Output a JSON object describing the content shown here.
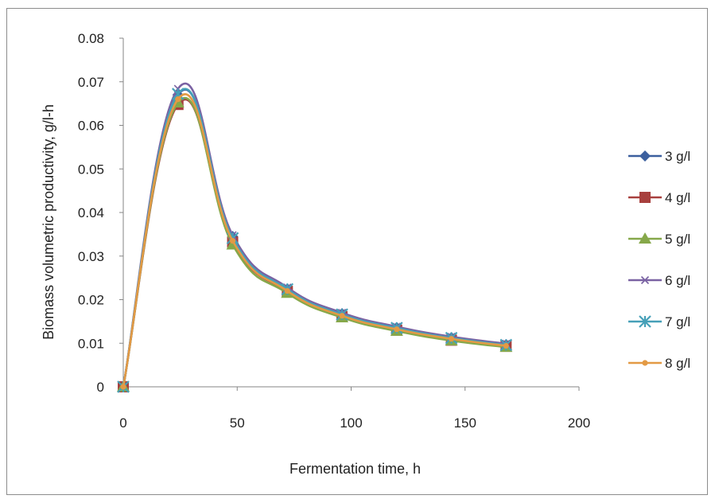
{
  "chart_data": {
    "type": "line",
    "xlabel": "Fermentation time, h",
    "ylabel": "Biomass volumetric productivity, g/l-h",
    "xlim": [
      0,
      200
    ],
    "ylim": [
      0,
      0.08
    ],
    "xticks": [
      "0",
      "50",
      "100",
      "150",
      "200"
    ],
    "yticks": [
      "0",
      "0.01",
      "0.02",
      "0.03",
      "0.04",
      "0.05",
      "0.06",
      "0.07",
      "0.08"
    ],
    "grid": false,
    "legend_position": "right",
    "x": [
      0,
      24,
      48,
      72,
      96,
      120,
      144,
      168
    ],
    "series": [
      {
        "name": "3 g/l",
        "color": "#3b5f9e",
        "marker": "diamond",
        "values": [
          0,
          0.067,
          0.0345,
          0.0225,
          0.0168,
          0.0136,
          0.0113,
          0.0097
        ]
      },
      {
        "name": "4 g/l",
        "color": "#a8403e",
        "marker": "square",
        "values": [
          0,
          0.0648,
          0.0332,
          0.0219,
          0.0161,
          0.013,
          0.0107,
          0.0093
        ]
      },
      {
        "name": "5 g/l",
        "color": "#86a84a",
        "marker": "triangle",
        "values": [
          0,
          0.0652,
          0.0326,
          0.0215,
          0.0159,
          0.0128,
          0.0106,
          0.0091
        ]
      },
      {
        "name": "6 g/l",
        "color": "#7a62a3",
        "marker": "x",
        "values": [
          0,
          0.0684,
          0.0348,
          0.0228,
          0.017,
          0.0138,
          0.0115,
          0.0099
        ]
      },
      {
        "name": "7 g/l",
        "color": "#46a0b8",
        "marker": "star",
        "values": [
          0,
          0.0672,
          0.0341,
          0.0224,
          0.0166,
          0.0135,
          0.0112,
          0.0096
        ]
      },
      {
        "name": "8 g/l",
        "color": "#e39a45",
        "marker": "circle",
        "values": [
          0,
          0.066,
          0.0335,
          0.022,
          0.0163,
          0.0132,
          0.011,
          0.0094
        ]
      }
    ]
  }
}
